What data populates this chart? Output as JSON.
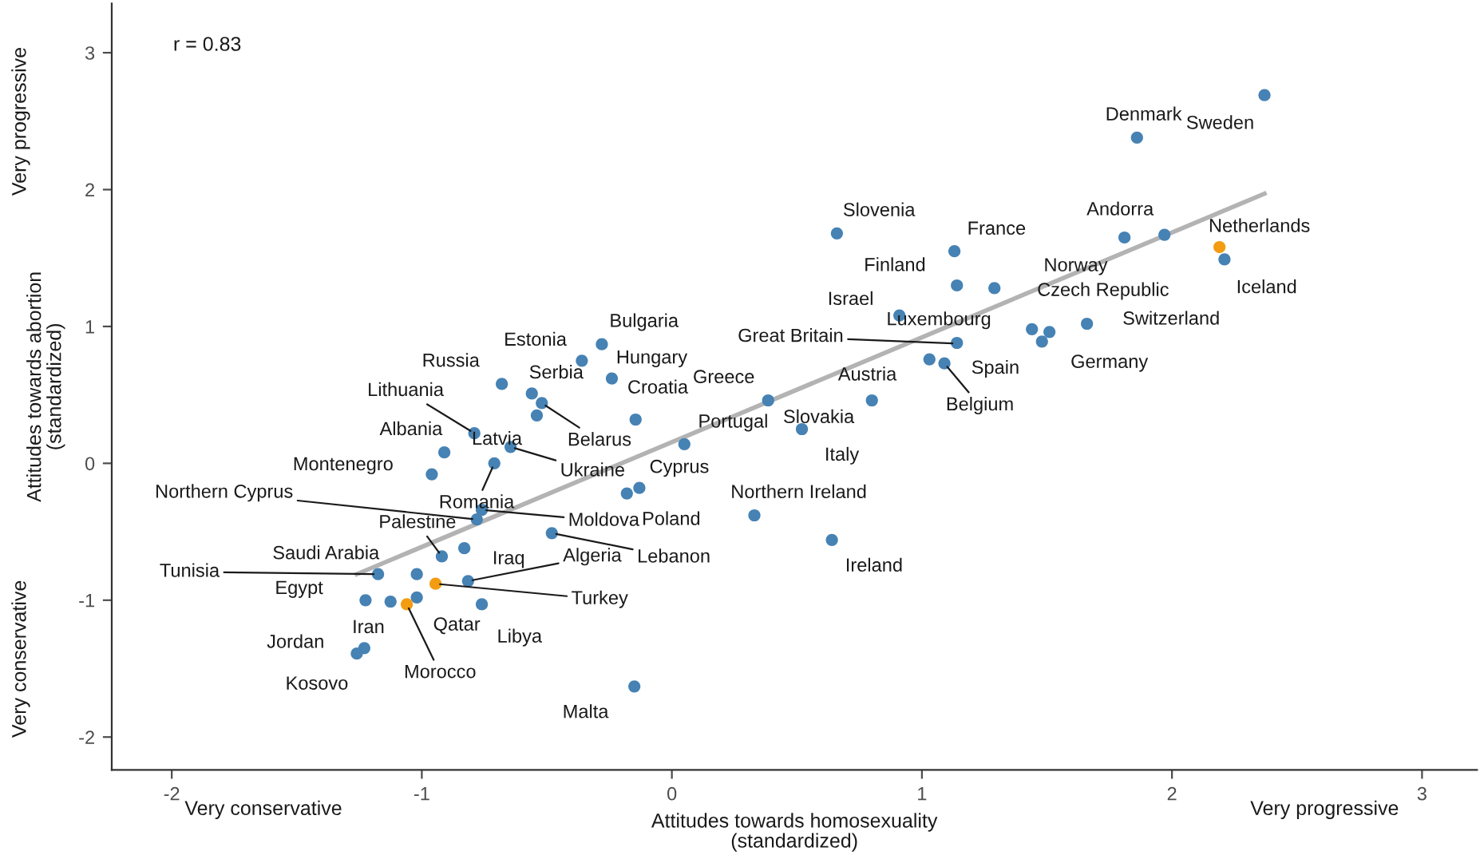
{
  "chart_data": {
    "type": "scatter",
    "xlabel": "Attitudes towards homosexuality\n(standardized)",
    "ylabel": "Attitudes towards abortion\n(standardized)",
    "xlim": [
      -2.24,
      3.22
    ],
    "ylim": [
      -2.24,
      3.36
    ],
    "xticks": [
      -2,
      -1,
      0,
      1,
      2,
      3
    ],
    "yticks": [
      -2,
      -1,
      0,
      1,
      2,
      3
    ],
    "series": [
      {
        "marker": "circle",
        "x": [
          -0.28,
          -0.36,
          -0.24,
          -0.68,
          -0.56,
          -0.52,
          -0.54,
          -0.79,
          -0.145,
          -0.91,
          -0.645,
          -0.71,
          -0.96,
          0.05,
          -0.13,
          -0.18,
          -0.76,
          -0.78,
          -0.48,
          -0.92,
          -0.83,
          -0.815,
          -1.02,
          -1.175,
          -0.945,
          -1.225,
          -1.125,
          -1.02,
          -1.06,
          -0.76,
          -1.23,
          -1.26,
          -0.15,
          0.66,
          1.13,
          1.14,
          1.29,
          0.91,
          1.14,
          1.44,
          1.48,
          1.51,
          1.66,
          1.03,
          1.09,
          0.385,
          0.8,
          0.52,
          0.33,
          0.64,
          1.81,
          1.97,
          2.19,
          2.21,
          1.86,
          2.37
        ],
        "values": [
          0.87,
          0.75,
          0.62,
          0.58,
          0.51,
          0.44,
          0.35,
          0.22,
          0.32,
          0.08,
          0.12,
          0.0,
          -0.08,
          0.14,
          -0.18,
          -0.22,
          -0.34,
          -0.41,
          -0.51,
          -0.68,
          -0.62,
          -0.86,
          -0.81,
          -0.81,
          -0.88,
          -1.0,
          -1.01,
          -0.98,
          -1.03,
          -1.03,
          -1.35,
          -1.39,
          -1.63,
          1.68,
          1.55,
          1.3,
          1.28,
          1.08,
          0.88,
          0.98,
          0.89,
          0.96,
          1.02,
          0.76,
          0.73,
          0.46,
          0.46,
          0.25,
          -0.38,
          -0.56,
          1.65,
          1.67,
          1.58,
          1.49,
          2.38,
          2.69
        ],
        "colors": [
          "#4682b4",
          "#4682b4",
          "#4682b4",
          "#4682b4",
          "#4682b4",
          "#4682b4",
          "#4682b4",
          "#4682b4",
          "#4682b4",
          "#4682b4",
          "#4682b4",
          "#4682b4",
          "#4682b4",
          "#4682b4",
          "#4682b4",
          "#4682b4",
          "#4682b4",
          "#4682b4",
          "#4682b4",
          "#4682b4",
          "#4682b4",
          "#4682b4",
          "#4682b4",
          "#4682b4",
          "#f39c12",
          "#4682b4",
          "#4682b4",
          "#4682b4",
          "#f39c12",
          "#4682b4",
          "#4682b4",
          "#4682b4",
          "#4682b4",
          "#4682b4",
          "#4682b4",
          "#4682b4",
          "#4682b4",
          "#4682b4",
          "#4682b4",
          "#4682b4",
          "#4682b4",
          "#4682b4",
          "#4682b4",
          "#4682b4",
          "#4682b4",
          "#4682b4",
          "#4682b4",
          "#4682b4",
          "#4682b4",
          "#4682b4",
          "#4682b4",
          "#4682b4",
          "#f39c12",
          "#4682b4",
          "#4682b4",
          "#4682b4"
        ]
      },
      {
        "type": "line",
        "color": "#b3b3b3",
        "x": [
          -1.26,
          2.37
        ],
        "values": [
          -0.81,
          1.97
        ]
      }
    ],
    "annotations": [
      {
        "text": "Bulgaria",
        "x": -0.28,
        "y": 0.87
      },
      {
        "text": "Estonia",
        "x": -0.36,
        "y": 0.75
      },
      {
        "text": "Hungary",
        "x": -0.24,
        "y": 0.62
      },
      {
        "text": "Russia",
        "x": -0.68,
        "y": 0.58
      },
      {
        "text": "Serbia",
        "x": -0.56,
        "y": 0.51
      },
      {
        "text": "Belarus",
        "x": -0.52,
        "y": 0.44
      },
      {
        "text": "Latvia",
        "x": -0.54,
        "y": 0.35
      },
      {
        "text": "Lithuania",
        "x": -0.79,
        "y": 0.22
      },
      {
        "text": "Croatia",
        "x": -0.145,
        "y": 0.32
      },
      {
        "text": "Albania",
        "x": -0.91,
        "y": 0.08
      },
      {
        "text": "Ukraine",
        "x": -0.645,
        "y": 0.12
      },
      {
        "text": "Romania",
        "x": -0.71,
        "y": 0.0
      },
      {
        "text": "Montenegro",
        "x": -0.96,
        "y": -0.08
      },
      {
        "text": "Portugal",
        "x": 0.05,
        "y": 0.135
      },
      {
        "text": "Cyprus",
        "x": -0.13,
        "y": -0.18
      },
      {
        "text": "Poland",
        "x": -0.18,
        "y": -0.22
      },
      {
        "text": "Moldova",
        "x": -0.76,
        "y": -0.34
      },
      {
        "text": "Northern Cyprus",
        "x": -0.78,
        "y": -0.41
      },
      {
        "text": "Lebanon",
        "x": -0.48,
        "y": -0.51
      },
      {
        "text": "Palestine",
        "x": -0.92,
        "y": -0.68
      },
      {
        "text": "Iraq",
        "x": -0.83,
        "y": -0.62
      },
      {
        "text": "Algeria",
        "x": -0.815,
        "y": -0.86
      },
      {
        "text": "Saudi Arabia",
        "x": -1.02,
        "y": -0.81
      },
      {
        "text": "Tunisia",
        "x": -1.175,
        "y": -0.81
      },
      {
        "text": "Turkey",
        "x": -0.945,
        "y": -0.88
      },
      {
        "text": "Egypt",
        "x": -1.225,
        "y": -1.0
      },
      {
        "text": "Iran",
        "x": -1.125,
        "y": -1.01
      },
      {
        "text": "Qatar",
        "x": -1.02,
        "y": -0.975
      },
      {
        "text": "Morocco",
        "x": -1.06,
        "y": -1.03
      },
      {
        "text": "Libya",
        "x": -0.76,
        "y": -1.03
      },
      {
        "text": "Jordan",
        "x": -1.23,
        "y": -1.345
      },
      {
        "text": "Kosovo",
        "x": -1.26,
        "y": -1.39
      },
      {
        "text": "Malta",
        "x": -0.15,
        "y": -1.63
      },
      {
        "text": "Slovenia",
        "x": 0.66,
        "y": 1.68
      },
      {
        "text": "France",
        "x": 1.13,
        "y": 1.545
      },
      {
        "text": "Finland",
        "x": 1.14,
        "y": 1.295
      },
      {
        "text": "Czech Republic",
        "x": 1.29,
        "y": 1.275
      },
      {
        "text": "Israel",
        "x": 0.91,
        "y": 1.08
      },
      {
        "text": "Great Britain",
        "x": 1.14,
        "y": 0.875
      },
      {
        "text": "Luxembourg",
        "x": 1.44,
        "y": 0.98
      },
      {
        "text": "Spain",
        "x": 1.48,
        "y": 0.885
      },
      {
        "text": "Germany",
        "x": 1.51,
        "y": 0.96
      },
      {
        "text": "Switzerland",
        "x": 1.66,
        "y": 1.017
      },
      {
        "text": "Austria",
        "x": 1.03,
        "y": 0.755
      },
      {
        "text": "Belgium",
        "x": 1.09,
        "y": 0.73
      },
      {
        "text": "Greece",
        "x": 0.385,
        "y": 0.46
      },
      {
        "text": "Slovakia",
        "x": 0.8,
        "y": 0.46
      },
      {
        "text": "Italy",
        "x": 0.52,
        "y": 0.25
      },
      {
        "text": "Northern Ireland",
        "x": 0.33,
        "y": -0.38
      },
      {
        "text": "Ireland",
        "x": 0.64,
        "y": -0.56
      },
      {
        "text": "Andorra",
        "x": 1.97,
        "y": 1.67
      },
      {
        "text": "Norway",
        "x": 1.81,
        "y": 1.65
      },
      {
        "text": "Netherlands",
        "x": 2.19,
        "y": 1.58
      },
      {
        "text": "Iceland",
        "x": 2.21,
        "y": 1.49
      },
      {
        "text": "Denmark",
        "x": 1.86,
        "y": 2.38
      },
      {
        "text": "Sweden",
        "x": 2.37,
        "y": 2.69
      },
      "r = 0.83",
      "Very conservative",
      "Very progressive",
      "Very progressive",
      "Very conservative"
    ]
  }
}
